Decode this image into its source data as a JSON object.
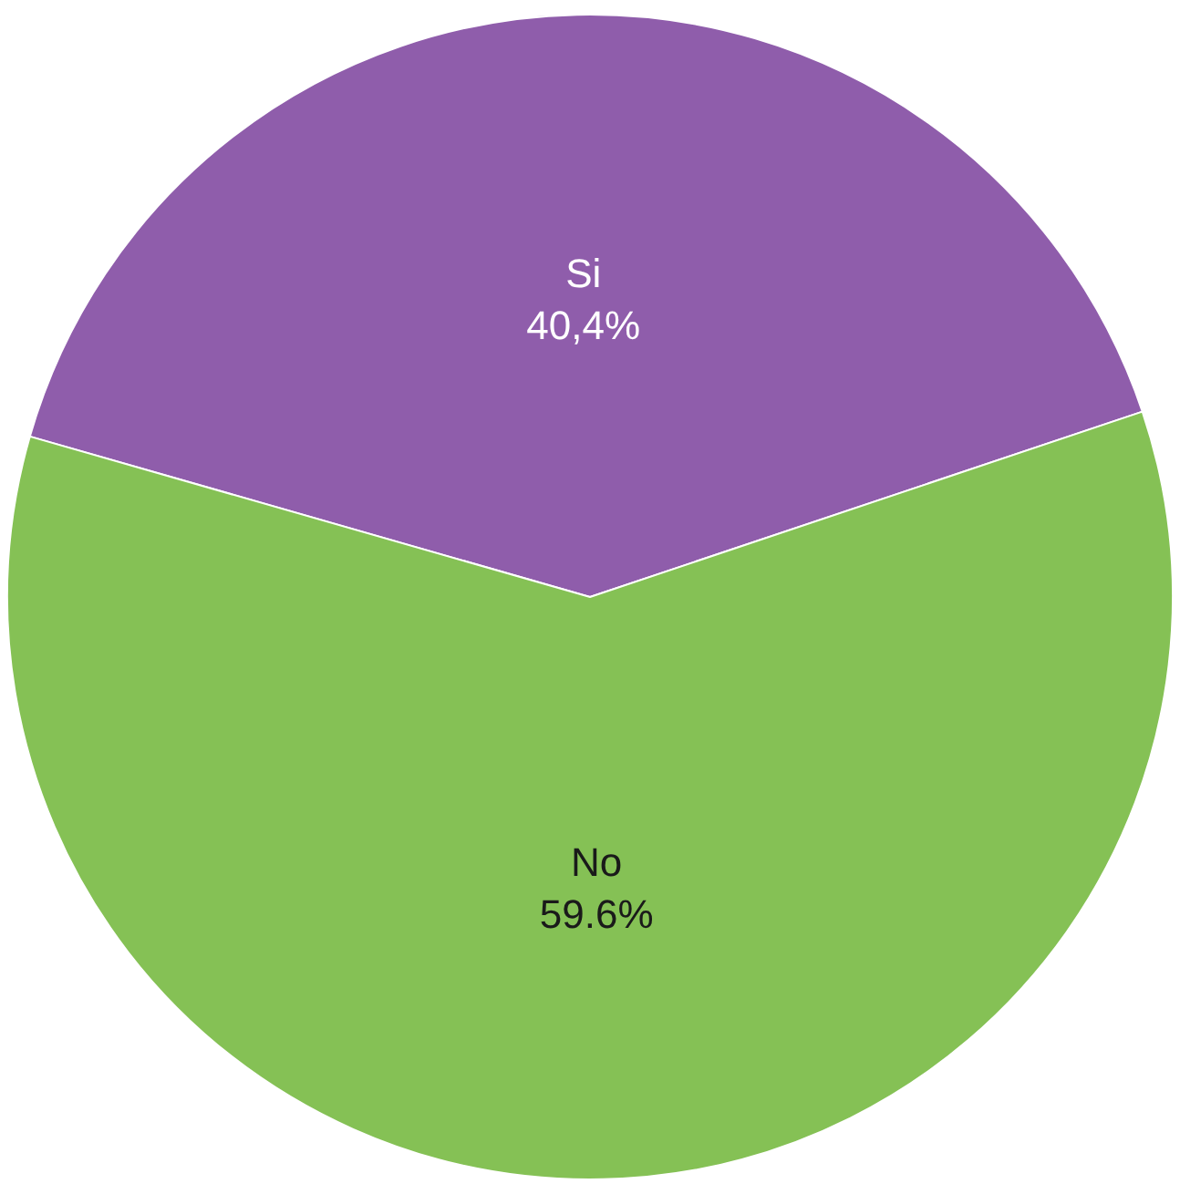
{
  "chart_data": {
    "type": "pie",
    "categories": [
      "Si",
      "No"
    ],
    "values": [
      40.4,
      59.6
    ],
    "colors": [
      "#8f5dab",
      "#85c155"
    ],
    "value_labels": [
      "40,4%",
      "59.6%"
    ],
    "legend": false
  }
}
